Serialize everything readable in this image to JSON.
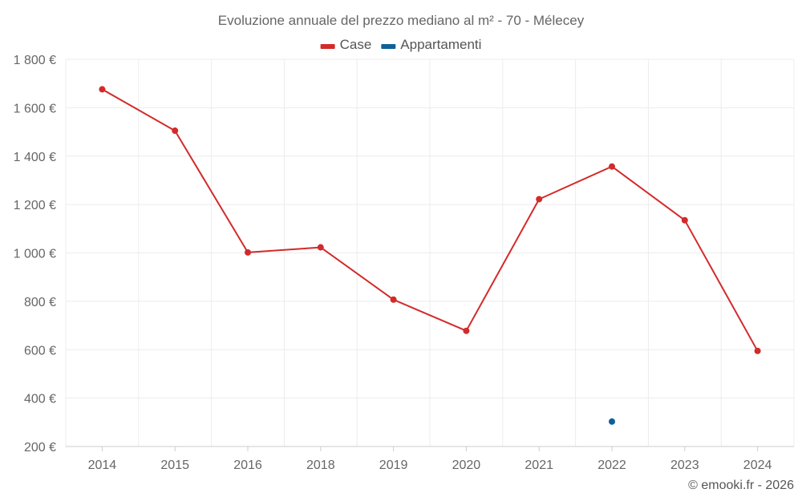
{
  "chart_data": {
    "type": "line",
    "title": "Evoluzione annuale del prezzo mediano al m² - 70 - Mélecey",
    "categories": [
      "2014",
      "2015",
      "2016",
      "2018",
      "2019",
      "2020",
      "2021",
      "2022",
      "2023",
      "2024"
    ],
    "series": [
      {
        "name": "Case",
        "color": "#d32a2a",
        "values": [
          1676,
          1505,
          1002,
          1023,
          807,
          678,
          1222,
          1357,
          1135,
          595
        ]
      },
      {
        "name": "Appartamenti",
        "color": "#0d6199",
        "values": [
          null,
          null,
          null,
          null,
          null,
          null,
          null,
          303,
          null,
          null
        ]
      }
    ],
    "ylim": [
      200,
      1800
    ],
    "yticks": [
      200,
      400,
      600,
      800,
      1000,
      1200,
      1400,
      1600,
      1800
    ],
    "ytick_labels": [
      "200 €",
      "400 €",
      "600 €",
      "800 €",
      "1 000 €",
      "1 200 €",
      "1 400 €",
      "1 600 €",
      "1 800 €"
    ],
    "xlabel": "",
    "ylabel": "",
    "legend_position": "top-center",
    "grid": true
  },
  "credit": "© emooki.fr - 2026"
}
